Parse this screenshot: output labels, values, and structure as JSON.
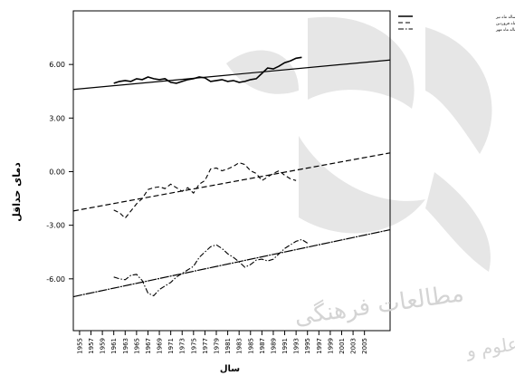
{
  "chart_data": {
    "type": "line",
    "ylabel": "دمای حداقل",
    "xlabel": "سال",
    "ylim": [
      -8.9,
      9.0
    ],
    "y_ticks": [
      "6.00",
      "3.00",
      "0.00",
      "-3.00",
      "-6.00"
    ],
    "x_ticks": [
      "1955",
      "1957",
      "1959",
      "1961",
      "1963",
      "1965",
      "1967",
      "1969",
      "1971",
      "1973",
      "1975",
      "1977",
      "1979",
      "1981",
      "1983",
      "1985",
      "1987",
      "1989",
      "1991",
      "1993",
      "1995",
      "1997",
      "1999",
      "2001",
      "2003",
      "2005"
    ],
    "legend_position": "top-right",
    "series": [
      {
        "name": "میانگین متحرک دهساله ماه تیر",
        "style": "solid",
        "values": [
          [
            1961,
            4.95
          ],
          [
            1962,
            5.05
          ],
          [
            1963,
            5.1
          ],
          [
            1964,
            5.05
          ],
          [
            1965,
            5.2
          ],
          [
            1966,
            5.15
          ],
          [
            1967,
            5.3
          ],
          [
            1968,
            5.2
          ],
          [
            1969,
            5.15
          ],
          [
            1970,
            5.2
          ],
          [
            1971,
            5.0
          ],
          [
            1972,
            4.95
          ],
          [
            1973,
            5.05
          ],
          [
            1974,
            5.15
          ],
          [
            1975,
            5.2
          ],
          [
            1976,
            5.3
          ],
          [
            1977,
            5.25
          ],
          [
            1978,
            5.05
          ],
          [
            1979,
            5.1
          ],
          [
            1980,
            5.15
          ],
          [
            1981,
            5.05
          ],
          [
            1982,
            5.1
          ],
          [
            1983,
            5.0
          ],
          [
            1984,
            5.05
          ],
          [
            1985,
            5.15
          ],
          [
            1986,
            5.2
          ],
          [
            1987,
            5.5
          ],
          [
            1988,
            5.8
          ],
          [
            1989,
            5.75
          ],
          [
            1990,
            5.9
          ],
          [
            1991,
            6.1
          ],
          [
            1992,
            6.2
          ],
          [
            1993,
            6.35
          ],
          [
            1994,
            6.4
          ]
        ],
        "trend": [
          [
            1953.9,
            4.6
          ],
          [
            2009.5,
            6.25
          ]
        ]
      },
      {
        "name": "میانگین متحرک دهساله ماه فروردین",
        "style": "dashed",
        "values": [
          [
            1961,
            -2.15
          ],
          [
            1962,
            -2.3
          ],
          [
            1963,
            -2.6
          ],
          [
            1964,
            -2.2
          ],
          [
            1965,
            -1.8
          ],
          [
            1966,
            -1.5
          ],
          [
            1967,
            -1.0
          ],
          [
            1968,
            -0.9
          ],
          [
            1969,
            -0.85
          ],
          [
            1970,
            -0.95
          ],
          [
            1971,
            -0.7
          ],
          [
            1972,
            -0.9
          ],
          [
            1973,
            -1.1
          ],
          [
            1974,
            -0.9
          ],
          [
            1975,
            -1.2
          ],
          [
            1976,
            -0.7
          ],
          [
            1977,
            -0.5
          ],
          [
            1978,
            0.15
          ],
          [
            1979,
            0.2
          ],
          [
            1980,
            0.05
          ],
          [
            1981,
            0.15
          ],
          [
            1982,
            0.3
          ],
          [
            1983,
            0.5
          ],
          [
            1984,
            0.4
          ],
          [
            1985,
            0.05
          ],
          [
            1986,
            -0.1
          ],
          [
            1987,
            -0.5
          ],
          [
            1988,
            -0.3
          ],
          [
            1989,
            -0.1
          ],
          [
            1990,
            0.05
          ],
          [
            1991,
            -0.2
          ],
          [
            1992,
            -0.4
          ],
          [
            1993,
            -0.5
          ]
        ],
        "trend": [
          [
            1953.9,
            -2.2
          ],
          [
            2009.5,
            1.05
          ]
        ]
      },
      {
        "name": "میانگین متحرک دهساله ماه مهر",
        "style": "dash-dot",
        "values": [
          [
            1961,
            -5.9
          ],
          [
            1962,
            -6.0
          ],
          [
            1963,
            -6.05
          ],
          [
            1964,
            -5.8
          ],
          [
            1965,
            -5.75
          ],
          [
            1966,
            -6.1
          ],
          [
            1967,
            -6.8
          ],
          [
            1968,
            -6.95
          ],
          [
            1969,
            -6.6
          ],
          [
            1970,
            -6.4
          ],
          [
            1971,
            -6.2
          ],
          [
            1972,
            -5.9
          ],
          [
            1973,
            -5.7
          ],
          [
            1974,
            -5.5
          ],
          [
            1975,
            -5.3
          ],
          [
            1976,
            -4.8
          ],
          [
            1977,
            -4.5
          ],
          [
            1978,
            -4.2
          ],
          [
            1979,
            -4.1
          ],
          [
            1980,
            -4.3
          ],
          [
            1981,
            -4.6
          ],
          [
            1982,
            -4.8
          ],
          [
            1983,
            -5.05
          ],
          [
            1984,
            -5.35
          ],
          [
            1985,
            -5.2
          ],
          [
            1986,
            -4.95
          ],
          [
            1987,
            -4.9
          ],
          [
            1988,
            -5.0
          ],
          [
            1989,
            -4.9
          ],
          [
            1990,
            -4.6
          ],
          [
            1991,
            -4.3
          ],
          [
            1992,
            -4.1
          ],
          [
            1993,
            -3.9
          ],
          [
            1994,
            -3.8
          ],
          [
            1995,
            -4.0
          ]
        ],
        "trend": [
          [
            1953.9,
            -7.0
          ],
          [
            2009.5,
            -3.25
          ]
        ]
      }
    ]
  },
  "watermark": {
    "text": "مطالعات فرهنگی",
    "text2": "علوم و",
    "color": "#d8d8d8"
  }
}
